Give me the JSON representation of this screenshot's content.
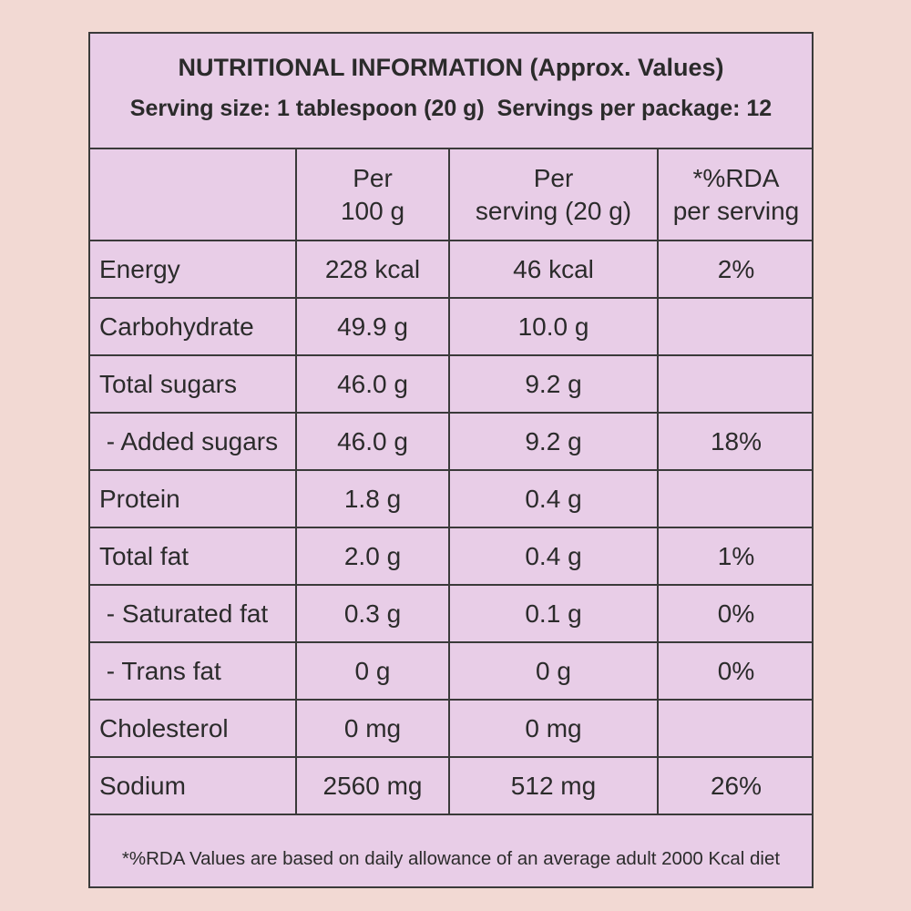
{
  "title": "NUTRITIONAL INFORMATION (Approx. Values)",
  "serving_line": "Serving size: 1 tablespoon (20 g)  Servings per package: 12",
  "table": {
    "header": [
      [
        "Per",
        "100 g"
      ],
      [
        "Per",
        "serving (20 g)"
      ],
      [
        "*%RDA",
        "per serving"
      ]
    ],
    "rows": [
      {
        "name": "Energy",
        "per_100g": "228 kcal",
        "per_serving": "46 kcal",
        "rda": "2%"
      },
      {
        "name": "Carbohydrate",
        "per_100g": "49.9 g",
        "per_serving": "10.0 g"
      },
      {
        "name": "Total sugars",
        "per_100g": "46.0 g",
        "per_serving": "9.2 g"
      },
      {
        "name": " - Added sugars",
        "per_100g": "46.0 g",
        "per_serving": "9.2 g",
        "rda": "18%"
      },
      {
        "name": "Protein",
        "per_100g": "1.8 g",
        "per_serving": "0.4 g"
      },
      {
        "name": "Total fat",
        "per_100g": "2.0 g",
        "per_serving": "0.4 g",
        "rda": "1%"
      },
      {
        "name": " - Saturated fat",
        "per_100g": "0.3 g",
        "per_serving": "0.1 g",
        "rda": "0%"
      },
      {
        "name": " - Trans fat",
        "per_100g": "0 g",
        "per_serving": "0 g",
        "rda": "0%"
      },
      {
        "name": "Cholesterol",
        "per_100g": "0 mg",
        "per_serving": "0 mg"
      },
      {
        "name": "Sodium",
        "per_100g": "2560 mg",
        "per_serving": "512 mg",
        "rda": "26%"
      }
    ]
  },
  "footnote": "*%RDA Values are based on daily allowance of an average adult 2000 Kcal diet"
}
